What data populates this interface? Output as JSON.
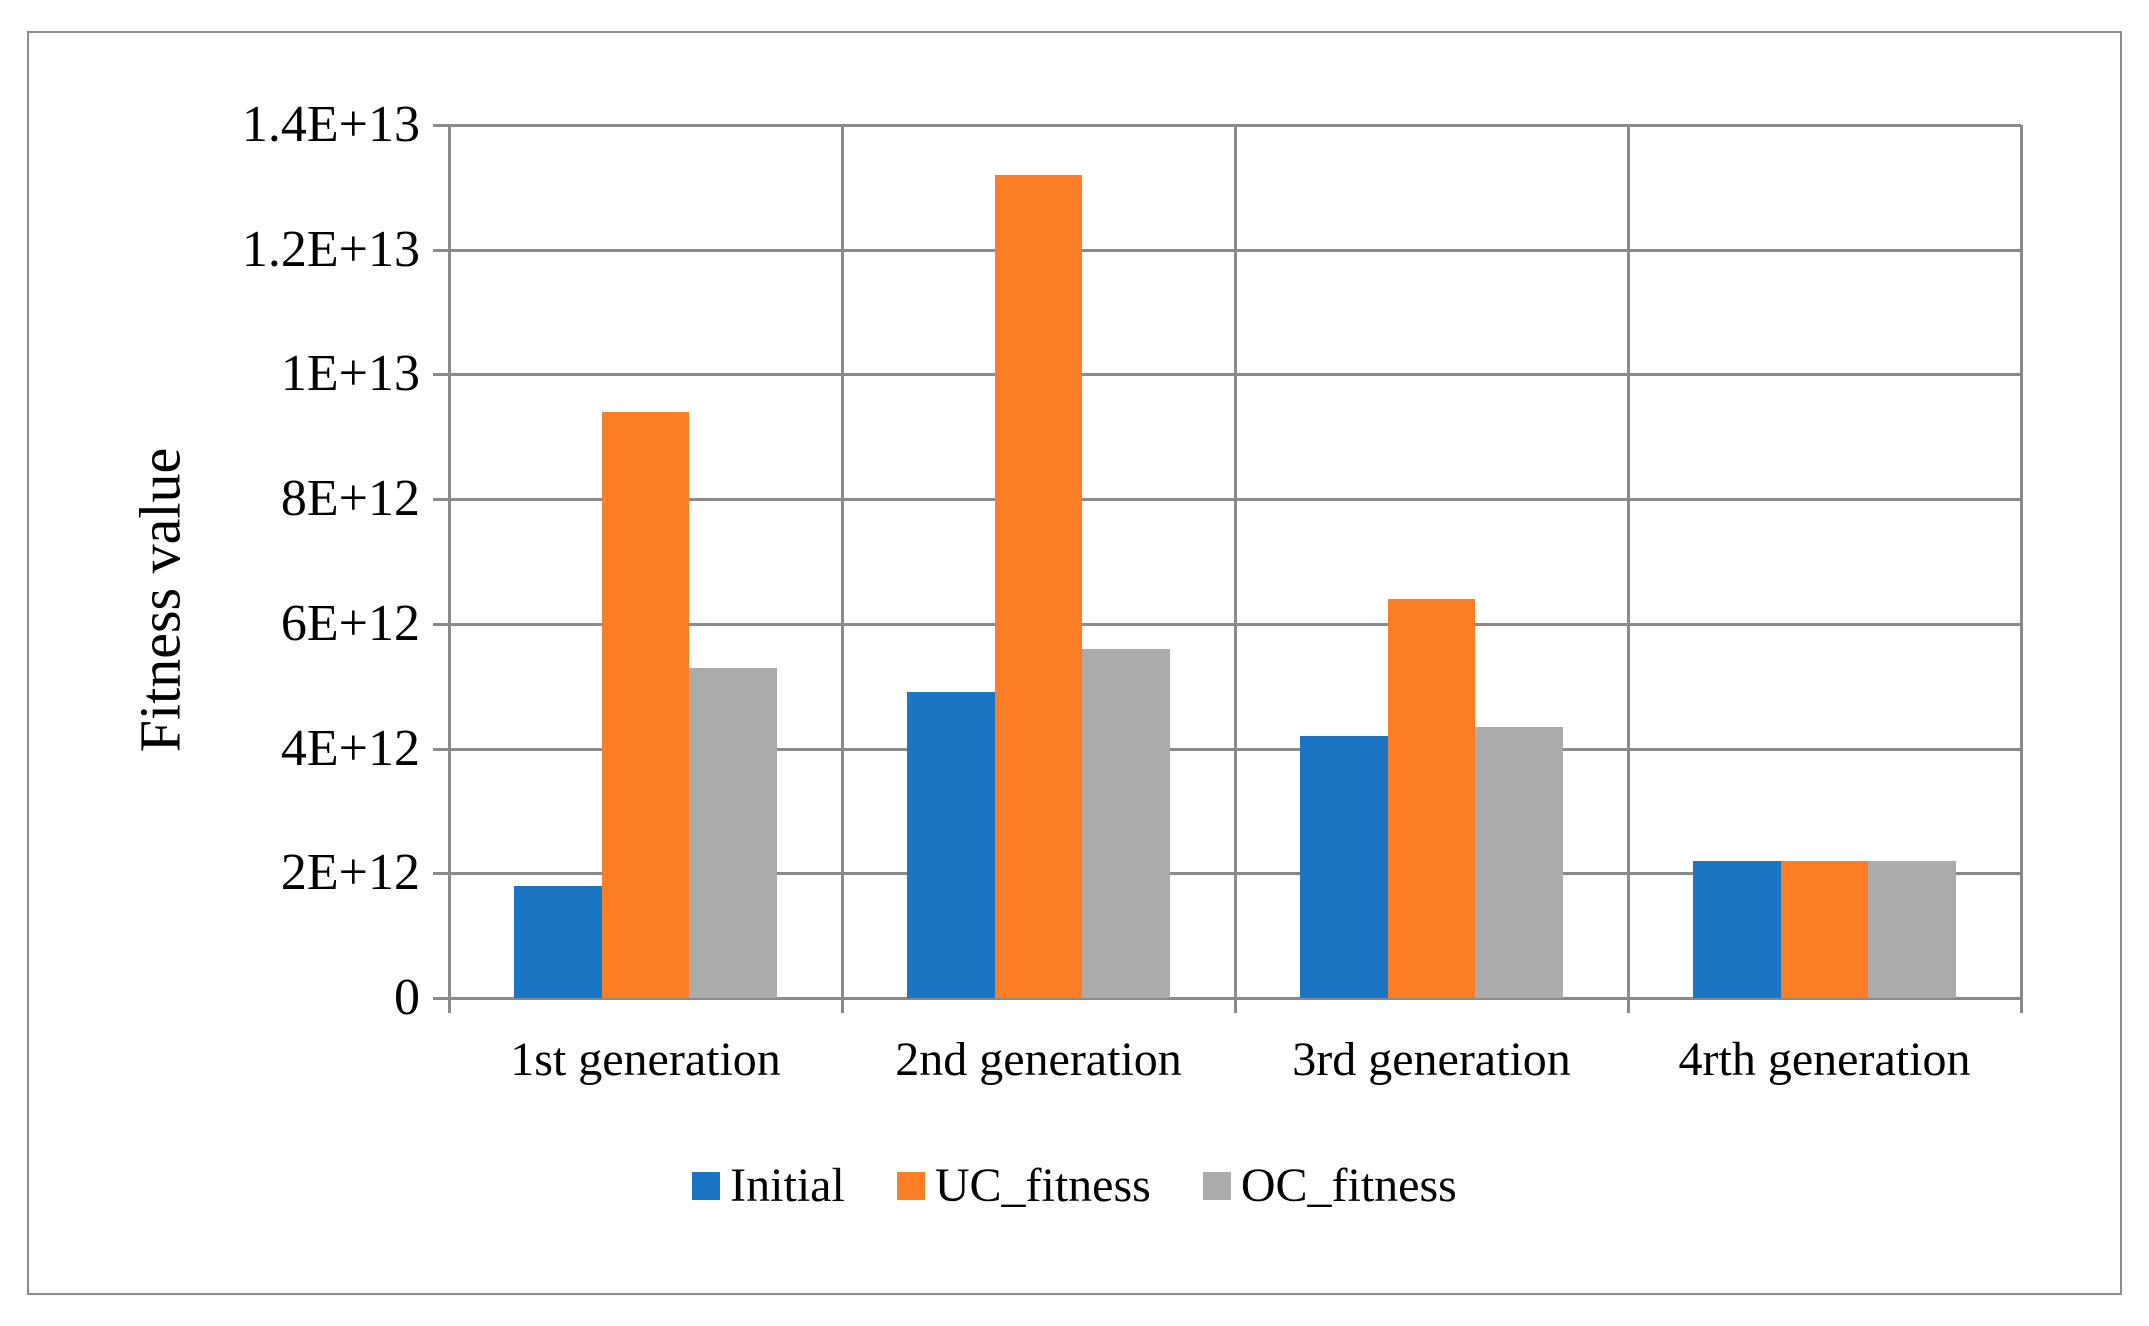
{
  "figure": {
    "background": "#FFFFFF",
    "border_color": "#8C8C8C",
    "gridline_color": "#8A8A8A"
  },
  "chart_data": {
    "type": "bar",
    "title": "",
    "xlabel": "",
    "ylabel": "Fitness value",
    "categories": [
      "1st generation",
      "2nd generation",
      "3rd generation",
      "4rth generation"
    ],
    "series": [
      {
        "name": "Initial",
        "color": "#1B74C4",
        "values": [
          1800000000000.0,
          4900000000000.0,
          4200000000000.0,
          2200000000000.0
        ]
      },
      {
        "name": "UC_fitness",
        "color": "#FB7D26",
        "values": [
          9400000000000.0,
          13200000000000.0,
          6400000000000.0,
          2200000000000.0
        ]
      },
      {
        "name": "OC_fitness",
        "color": "#ABABAB",
        "values": [
          5300000000000.0,
          5600000000000.0,
          4350000000000.0,
          2200000000000.0
        ]
      }
    ],
    "ylim": [
      0,
      14000000000000.0
    ],
    "y_tick_interval": 2000000000000.0,
    "y_ticks": [
      "1.4E+13",
      "1.2E+13",
      "1E+13",
      "8E+12",
      "6E+12",
      "4E+12",
      "2E+12",
      "0"
    ],
    "grid": "horizontal gridlines plus vertical category-boundary lines, ticks outside axes",
    "legend_position": "bottom-center"
  }
}
